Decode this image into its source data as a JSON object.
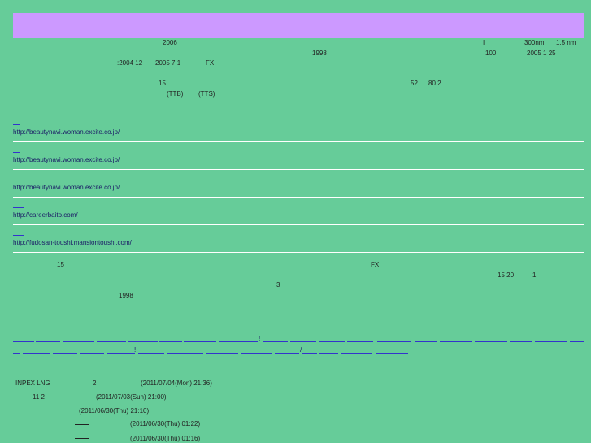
{
  "colors": {
    "background": "#66cc99",
    "banner": "#cc99ff",
    "link": "#3333cc",
    "text": "#222222"
  },
  "intro": {
    "l1a": "2006",
    "l1b": "I",
    "l1c": "300nm",
    "l1d": "1.5 nm",
    "l2a": "1998",
    "l2b": "100",
    "l2c": "2005 1 25",
    "l3a": ":2004 12",
    "l3b": "2005 7 1",
    "l3c": "FX",
    "l4a": "15",
    "l4b": "52",
    "l4c": "80 2",
    "l5a": "(TTB)",
    "l5b": "(TTS)"
  },
  "links": [
    {
      "url": "http://beautynavi.woman.excite.co.jp/"
    },
    {
      "url": "http://beautynavi.woman.excite.co.jp/"
    },
    {
      "url": "http://beautynavi.woman.excite.co.jp/"
    },
    {
      "url": "http://careerbaito.com/"
    },
    {
      "url": "http://fudosan-toushi.mansiontoushi.com/"
    }
  ],
  "body2": {
    "a": "15",
    "b": "FX",
    "c": "15 20",
    "d": "1",
    "e": "3",
    "f": "1998"
  },
  "tag_marks": {
    "m1": "!",
    "m2": "!",
    "m3": "/"
  },
  "news": [
    {
      "title": "INPEX LNG",
      "extra": "2",
      "date": "(2011/07/04(Mon) 21:36)"
    },
    {
      "title": "11 2",
      "extra": "",
      "date": "(2011/07/03(Sun) 21:00)"
    },
    {
      "title": "",
      "extra": "",
      "date": "(2011/06/30(Thu) 21:10)"
    },
    {
      "title": "",
      "extra": "",
      "date": "(2011/06/30(Thu) 01:22)"
    },
    {
      "title": "",
      "extra": "",
      "date": "(2011/06/30(Thu) 01:16)"
    }
  ]
}
